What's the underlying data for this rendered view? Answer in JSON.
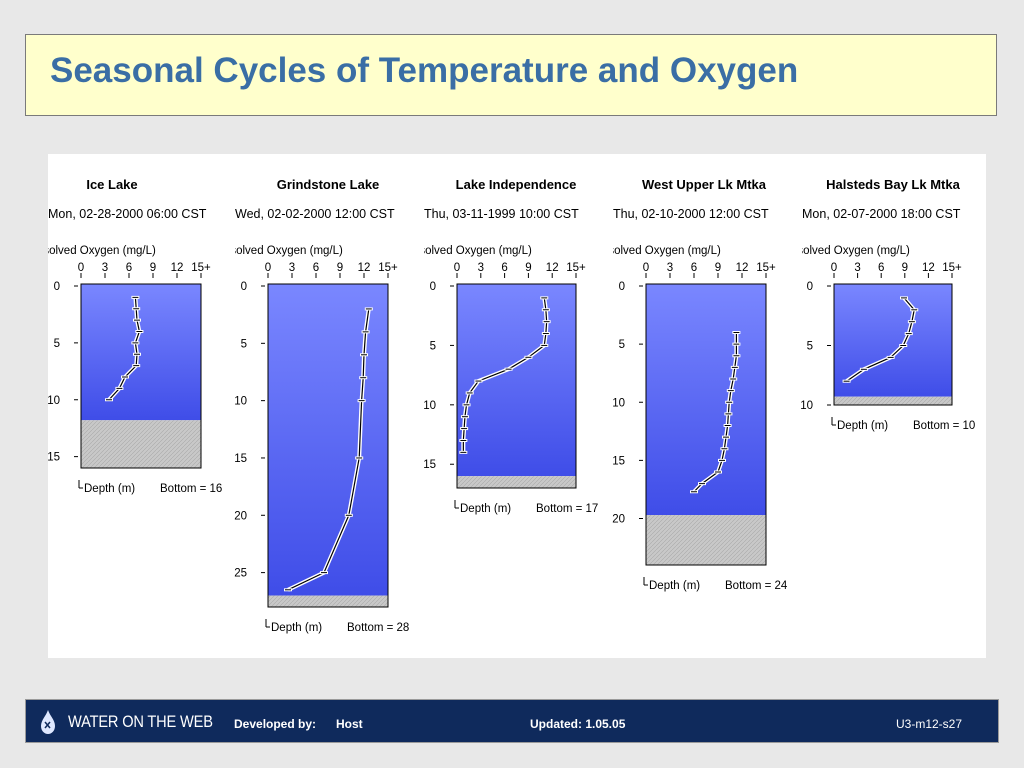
{
  "title": "Seasonal Cycles of Temperature and Oxygen",
  "footer": {
    "logo": "WATER ON THE WEB",
    "developed_label": "Developed by:",
    "developed_value": "Host",
    "updated": "Updated: 1.05.05",
    "slide_id": "U3-m12-s27"
  },
  "colors": {
    "title_box": "#ffffcc",
    "title_text": "#3a6ea5",
    "water_light": "#7a87ff",
    "water_dark": "#3f4de8",
    "sediment": "#c8c8c8",
    "footer_bg": "#0f2a5c"
  },
  "chart_data": [
    {
      "type": "line",
      "title": "Ice Lake",
      "datetime": "Mon, 02-28-2000 06:00 CST",
      "subtitle": "Plotting: Dissolved Oxygen (mg/L)",
      "xlabel": "Dissolved Oxygen (mg/L)",
      "ylabel": "Depth (m)",
      "x_ticks": [
        "0",
        "3",
        "6",
        "9",
        "12",
        "15+"
      ],
      "y_ticks": [
        0,
        5,
        10,
        15
      ],
      "xlim": [
        0,
        15
      ],
      "ylim": [
        0,
        16
      ],
      "bottom_label": "Bottom = 16",
      "bottom_depth": 16,
      "sediment_top": 11.8,
      "depth": [
        1,
        2,
        3,
        4,
        5,
        6,
        7,
        8,
        9,
        10
      ],
      "values": [
        6.8,
        6.9,
        7.0,
        7.3,
        6.8,
        7.0,
        6.9,
        5.5,
        4.8,
        3.5
      ]
    },
    {
      "type": "line",
      "title": "Grindstone Lake",
      "datetime": "Wed, 02-02-2000 12:00 CST",
      "subtitle": "Plotting: Dissolved Oxygen (mg/L)",
      "xlabel": "Dissolved Oxygen (mg/L)",
      "ylabel": "Depth (m)",
      "x_ticks": [
        "0",
        "3",
        "6",
        "9",
        "12",
        "15+"
      ],
      "y_ticks": [
        0,
        5,
        10,
        15,
        20,
        25
      ],
      "xlim": [
        0,
        15
      ],
      "ylim": [
        0,
        28
      ],
      "bottom_label": "Bottom = 28",
      "bottom_depth": 28,
      "sediment_top": 27,
      "depth": [
        2,
        4,
        6,
        8,
        10,
        15,
        20,
        25,
        26.5
      ],
      "values": [
        12.6,
        12.2,
        12.0,
        11.9,
        11.7,
        11.4,
        10.1,
        7.0,
        2.5
      ]
    },
    {
      "type": "line",
      "title": "Lake Independence",
      "datetime": "Thu, 03-11-1999 10:00 CST",
      "subtitle": "Plotting: Dissolved Oxygen (mg/L)",
      "xlabel": "Dissolved Oxygen (mg/L)",
      "ylabel": "Depth (m)",
      "x_ticks": [
        "0",
        "3",
        "6",
        "9",
        "12",
        "15+"
      ],
      "y_ticks": [
        0,
        5,
        10,
        15
      ],
      "xlim": [
        0,
        15
      ],
      "ylim": [
        0,
        17
      ],
      "bottom_label": "Bottom = 17",
      "bottom_depth": 17,
      "sediment_top": 16,
      "depth": [
        1,
        2,
        3,
        4,
        5,
        6,
        7,
        8,
        9,
        10,
        11,
        12,
        13,
        14
      ],
      "values": [
        11.0,
        11.2,
        11.3,
        11.2,
        11.0,
        9.0,
        6.5,
        2.7,
        1.6,
        1.2,
        1.0,
        0.9,
        0.8,
        0.8
      ]
    },
    {
      "type": "line",
      "title": "West Upper Lk Mtka",
      "datetime": "Thu, 02-10-2000 12:00 CST",
      "subtitle": "Plotting: Dissolved Oxygen (mg/L)",
      "xlabel": "Dissolved Oxygen (mg/L)",
      "ylabel": "Depth (m)",
      "x_ticks": [
        "0",
        "3",
        "6",
        "9",
        "12",
        "15+"
      ],
      "y_ticks": [
        0,
        5,
        10,
        15,
        20
      ],
      "xlim": [
        0,
        15
      ],
      "ylim": [
        0,
        24
      ],
      "bottom_label": "Bottom = 24",
      "bottom_depth": 24,
      "sediment_top": 19.7,
      "depth": [
        4,
        5,
        6,
        7,
        8,
        9,
        10,
        11,
        12,
        13,
        14,
        15,
        16,
        17,
        17.7
      ],
      "values": [
        11.3,
        11.3,
        11.3,
        11.1,
        10.9,
        10.6,
        10.4,
        10.3,
        10.2,
        10.0,
        9.8,
        9.5,
        9.0,
        7.0,
        6.0
      ]
    },
    {
      "type": "line",
      "title": "Halsteds Bay Lk Mtka",
      "datetime": "Mon, 02-07-2000 18:00 CST",
      "subtitle": "Plotting: Dissolved Oxygen (mg/L)",
      "xlabel": "Dissolved Oxygen (mg/L)",
      "ylabel": "Depth (m)",
      "x_ticks": [
        "0",
        "3",
        "6",
        "9",
        "12",
        "15+"
      ],
      "y_ticks": [
        0,
        5,
        10
      ],
      "xlim": [
        0,
        15
      ],
      "ylim": [
        0,
        10
      ],
      "bottom_label": "Bottom = 10",
      "bottom_depth": 10,
      "sediment_top": 9.3,
      "depth": [
        1,
        2,
        3,
        4,
        5,
        6,
        7,
        8
      ],
      "values": [
        8.9,
        10.2,
        9.9,
        9.5,
        8.8,
        7.2,
        3.8,
        1.6
      ]
    }
  ]
}
